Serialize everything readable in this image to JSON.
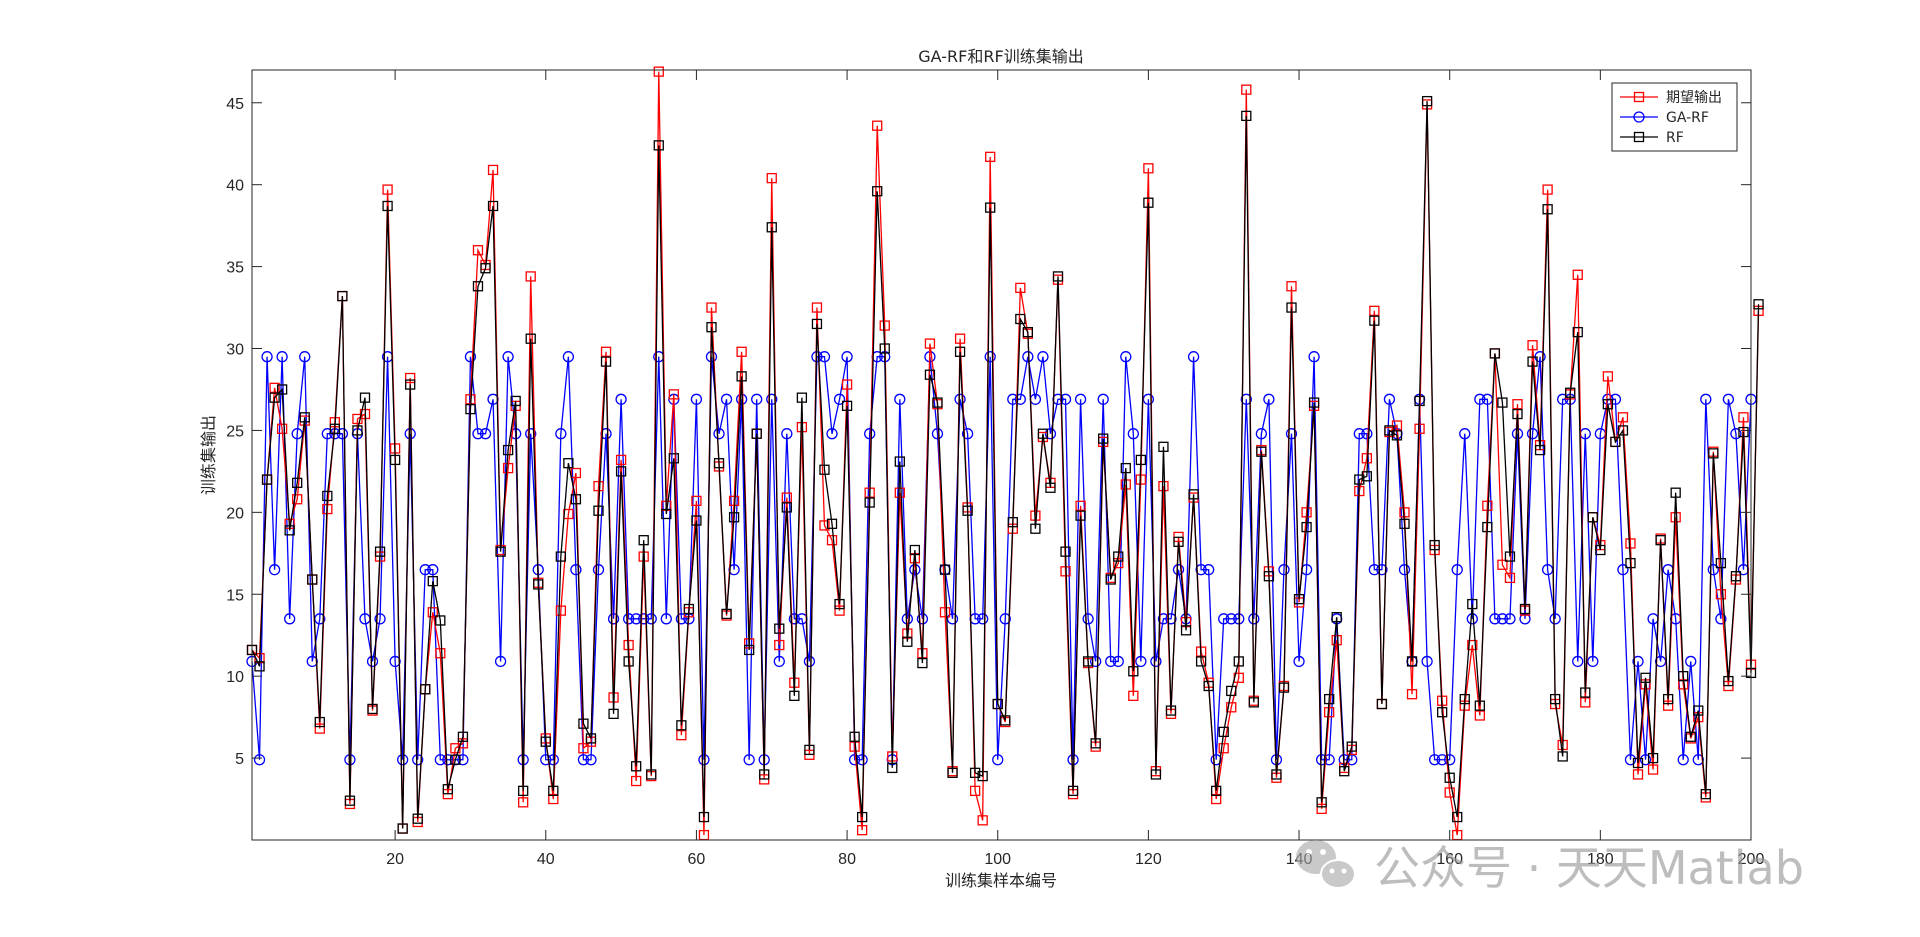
{
  "chart_data": {
    "type": "line",
    "title": "GA-RF和RF训练集输出",
    "xlabel": "训练集样本编号",
    "ylabel": "训练集输出",
    "xlim": [
      1,
      200
    ],
    "ylim": [
      0,
      47
    ],
    "x_ticks": [
      20,
      40,
      60,
      80,
      100,
      120,
      140,
      160,
      180,
      200
    ],
    "y_ticks": [
      5,
      10,
      15,
      20,
      25,
      30,
      35,
      40,
      45
    ],
    "legend_position": "top-right",
    "series": [
      {
        "name": "期望输出",
        "color": "#ff0000",
        "marker": "square",
        "values": [
          11.6,
          11.1,
          22.0,
          27.6,
          25.1,
          19.3,
          20.8,
          25.6,
          15.9,
          6.8,
          20.2,
          25.5,
          33.2,
          2.2,
          25.7,
          26.0,
          7.9,
          17.3,
          39.7,
          23.9,
          0.7,
          28.2,
          1.1,
          9.2,
          13.9,
          11.4,
          2.8,
          5.6,
          5.9,
          26.9,
          36.0,
          35.1,
          40.9,
          17.7,
          22.7,
          26.5,
          2.3,
          34.4,
          15.7,
          6.2,
          2.5,
          14.0,
          19.9,
          22.4,
          5.6,
          6.0,
          21.6,
          29.8,
          8.7,
          23.2,
          11.9,
          3.6,
          17.3,
          3.9,
          46.9,
          20.4,
          27.2,
          6.4,
          13.9,
          20.7,
          0.3,
          32.5,
          22.8,
          13.7,
          20.7,
          29.8,
          12.0,
          24.8,
          3.7,
          40.4,
          11.9,
          20.9,
          9.6,
          25.2,
          5.2,
          32.5,
          19.2,
          18.3,
          14.0,
          27.8,
          5.7,
          0.6,
          21.2,
          43.6,
          31.4,
          5.1,
          21.2,
          12.6,
          17.2,
          11.4,
          30.3,
          26.6,
          13.9,
          4.2,
          30.6,
          20.3,
          3.0,
          1.2,
          41.7,
          8.3,
          7.2,
          19.0,
          33.7,
          30.9,
          19.8,
          24.6,
          21.8,
          34.2,
          16.4,
          2.8,
          20.4,
          10.8,
          5.7,
          24.3,
          16.0,
          16.9,
          21.7,
          8.8,
          22.0,
          41.0,
          4.2,
          21.6,
          7.7,
          18.5,
          13.3,
          20.9,
          11.5,
          9.6,
          2.5,
          5.6,
          8.1,
          9.9,
          45.8,
          8.5,
          23.8,
          16.4,
          3.8,
          9.4,
          33.8,
          14.5,
          20.0,
          26.5,
          1.9,
          7.8,
          12.2,
          4.4,
          5.5,
          21.3,
          23.3,
          32.3,
          8.3,
          24.9,
          25.3,
          20.0,
          8.9,
          25.1,
          44.9,
          17.7,
          8.5,
          2.9,
          0.3,
          8.2,
          11.9,
          7.6,
          20.4,
          29.7,
          16.8,
          16.0,
          26.6,
          14.0,
          30.2,
          24.1,
          39.7,
          8.3,
          5.8,
          27.2,
          34.5,
          8.4,
          19.7,
          18.0,
          28.3,
          24.3,
          25.8,
          18.1,
          4.0,
          9.5,
          4.3,
          18.4,
          8.2,
          19.7,
          9.5,
          6.2,
          7.5,
          2.6,
          23.7,
          15.0,
          9.4,
          15.9,
          25.8,
          10.7,
          32.3
        ]
      },
      {
        "name": "GA-RF",
        "color": "#0000ff",
        "marker": "circle",
        "values": [
          10.9,
          4.9,
          29.5,
          16.5,
          29.5,
          13.5,
          24.8,
          29.5,
          10.9,
          13.5,
          24.8,
          24.8,
          24.8,
          4.9,
          24.8,
          13.5,
          10.9,
          13.5,
          29.5,
          10.9,
          4.9,
          24.8,
          4.9,
          16.5,
          16.5,
          4.9,
          4.9,
          4.9,
          4.9,
          29.5,
          24.8,
          24.8,
          26.9,
          10.9,
          29.5,
          24.8,
          4.9,
          24.8,
          16.5,
          4.9,
          4.9,
          24.8,
          29.5,
          16.5,
          4.9,
          4.9,
          16.5,
          24.8,
          13.5,
          26.9,
          13.5,
          13.5,
          13.5,
          13.5,
          29.5,
          13.5,
          26.9,
          13.5,
          13.5,
          26.9,
          4.9,
          29.5,
          24.8,
          26.9,
          16.5,
          26.9,
          4.9,
          26.9,
          4.9,
          26.9,
          10.9,
          24.8,
          13.5,
          13.5,
          10.9,
          29.5,
          29.5,
          24.8,
          26.9,
          29.5,
          4.9,
          4.9,
          24.8,
          29.5,
          29.5,
          4.9,
          26.9,
          13.5,
          16.5,
          13.5,
          29.5,
          24.8,
          16.5,
          13.5,
          26.9,
          24.8,
          13.5,
          13.5,
          29.5,
          4.9,
          13.5,
          26.9,
          26.9,
          29.5,
          26.9,
          29.5,
          24.8,
          26.9,
          26.9,
          4.9,
          26.9,
          13.5,
          10.9,
          26.9,
          10.9,
          10.9,
          29.5,
          24.8,
          10.9,
          26.9,
          10.9,
          13.5,
          13.5,
          16.5,
          13.5,
          29.5,
          16.5,
          16.5,
          4.9,
          13.5,
          13.5,
          13.5,
          26.9,
          13.5,
          24.8,
          26.9,
          4.9,
          16.5,
          24.8,
          10.9,
          16.5,
          29.5,
          4.9,
          4.9,
          13.5,
          4.9,
          4.9,
          24.8,
          24.8,
          16.5,
          16.5,
          26.9,
          24.8,
          16.5,
          10.9,
          26.9,
          10.9,
          4.9,
          4.9,
          4.9,
          16.5,
          24.8,
          13.5,
          26.9,
          26.9,
          13.5,
          13.5,
          13.5,
          24.8,
          13.5,
          24.8,
          29.5,
          16.5,
          13.5,
          26.9,
          26.9,
          10.9,
          24.8,
          10.9,
          24.8,
          26.9,
          26.9,
          16.5,
          4.9,
          10.9,
          4.9,
          13.5,
          10.9,
          16.5,
          13.5,
          4.9,
          10.9,
          4.9,
          26.9,
          16.5,
          13.5,
          26.9,
          24.8,
          16.5,
          26.9
        ]
      },
      {
        "name": "RF",
        "color": "#000000",
        "marker": "square",
        "values": [
          11.6,
          10.6,
          22.0,
          27.0,
          27.5,
          18.9,
          21.8,
          25.8,
          15.9,
          7.2,
          21.0,
          25.1,
          33.2,
          2.4,
          25.0,
          27.0,
          8.0,
          17.6,
          38.7,
          23.2,
          0.7,
          27.8,
          1.3,
          9.2,
          15.8,
          13.4,
          3.1,
          4.9,
          6.3,
          26.3,
          33.8,
          34.9,
          38.7,
          17.6,
          23.8,
          26.8,
          3.0,
          30.6,
          15.6,
          6.0,
          3.0,
          17.3,
          23.0,
          20.8,
          7.1,
          6.2,
          20.1,
          29.2,
          7.7,
          22.5,
          10.9,
          4.5,
          18.3,
          4.0,
          42.4,
          19.9,
          23.3,
          7.0,
          14.1,
          19.5,
          1.4,
          31.3,
          23.0,
          13.8,
          19.7,
          28.3,
          11.6,
          24.8,
          4.0,
          37.4,
          12.9,
          20.3,
          8.8,
          27.0,
          5.5,
          31.5,
          22.6,
          19.3,
          14.4,
          26.5,
          6.3,
          1.4,
          20.6,
          39.6,
          30.0,
          4.4,
          23.1,
          12.1,
          17.7,
          10.8,
          28.4,
          26.7,
          16.5,
          4.1,
          29.8,
          20.1,
          4.1,
          3.9,
          38.6,
          8.3,
          7.3,
          19.4,
          31.8,
          31.0,
          19.0,
          24.8,
          21.5,
          34.4,
          17.6,
          3.0,
          19.8,
          10.9,
          5.9,
          24.5,
          15.9,
          17.3,
          22.7,
          10.3,
          23.2,
          38.9,
          4.0,
          24.0,
          7.9,
          18.2,
          12.8,
          21.1,
          10.9,
          9.4,
          3.0,
          6.6,
          9.1,
          10.9,
          44.2,
          8.4,
          23.7,
          16.1,
          4.0,
          9.3,
          32.5,
          14.7,
          19.1,
          26.7,
          2.3,
          8.6,
          13.6,
          4.2,
          5.7,
          22.0,
          22.2,
          31.7,
          8.3,
          25.0,
          24.7,
          19.3,
          10.9,
          26.8,
          45.1,
          18.0,
          7.8,
          3.8,
          1.4,
          8.6,
          14.4,
          8.2,
          19.1,
          29.7,
          26.7,
          17.3,
          26.0,
          14.1,
          29.2,
          23.8,
          38.5,
          8.6,
          5.1,
          27.3,
          31.0,
          9.0,
          19.7,
          17.7,
          26.6,
          24.3,
          25.0,
          16.9,
          4.7,
          9.9,
          5.0,
          18.3,
          8.6,
          21.2,
          10.0,
          6.3,
          7.9,
          2.8,
          23.6,
          16.9,
          9.7,
          16.1,
          24.9,
          10.2,
          32.7
        ]
      }
    ]
  },
  "watermark": {
    "text": "公众号 · 天天Matlab",
    "icon": "wechat-icon"
  }
}
